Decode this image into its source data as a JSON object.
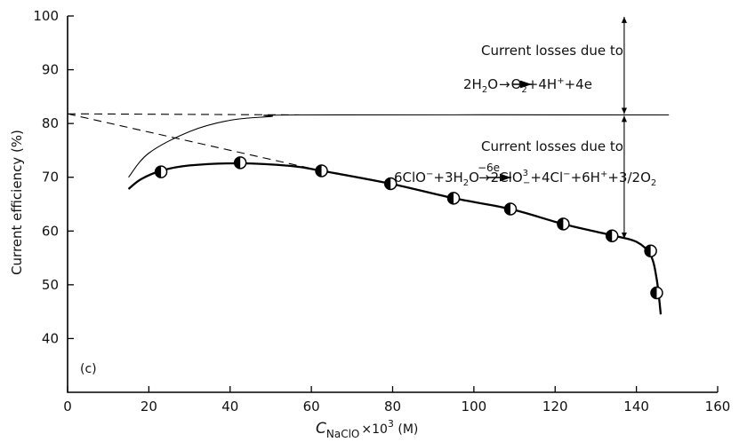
{
  "chart_data": {
    "type": "line",
    "title": "",
    "panel_label": "(c)",
    "xlabel": "C",
    "xlabel_sub": "NaClO",
    "xlabel_tail": "×10",
    "xlabel_sup": "3",
    "xlabel_unit": " (M)",
    "ylabel": "Current efficiency (%)",
    "xlim": [
      0,
      160
    ],
    "ylim": [
      30,
      100
    ],
    "xticks": [
      "0",
      "20",
      "40",
      "60",
      "80",
      "100",
      "120",
      "140",
      "160"
    ],
    "yticks": [
      "40",
      "50",
      "60",
      "70",
      "80",
      "90",
      "100"
    ],
    "grid": false,
    "series": [
      {
        "style": "thick-solid-with-markers",
        "x": [
          23,
          42.5,
          62.5,
          79.5,
          95,
          109,
          122,
          134,
          143.5,
          145
        ],
        "y": [
          71,
          72.7,
          71.2,
          68.8,
          66.1,
          64.1,
          61.3,
          59.1,
          56.3,
          48.5
        ]
      },
      {
        "style": "thin-solid",
        "x": [
          15,
          20,
          30,
          40,
          50,
          57,
          148
        ],
        "y": [
          70,
          74.5,
          78.5,
          80.6,
          81.3,
          81.6,
          81.6
        ]
      },
      {
        "style": "dashed",
        "x": [
          0,
          62.5
        ],
        "y": [
          81.8,
          71.2
        ]
      },
      {
        "style": "dashed",
        "x": [
          0,
          57
        ],
        "y": [
          81.8,
          81.6
        ]
      }
    ],
    "fit_curve": {
      "x": [
        15,
        18,
        23,
        30,
        42.5,
        55,
        62.5,
        79.5,
        95,
        109,
        122,
        134,
        140,
        143.5,
        145,
        146
      ],
      "y": [
        67.8,
        69.6,
        71.2,
        72.2,
        72.6,
        72.1,
        71.2,
        68.8,
        66.1,
        64.1,
        61.3,
        59.2,
        58.0,
        55.5,
        51,
        44.5
      ]
    },
    "annotations": [
      {
        "line1": "Current losses due to",
        "line2_parts": [
          "2H",
          "2",
          "O",
          "→",
          "O",
          "2",
          "+4H",
          "+",
          "+4e"
        ]
      },
      {
        "line1": "Current losses due to",
        "line2_parts": [
          "6ClO",
          "−",
          "+3H",
          "2",
          "O",
          "−6e",
          "→",
          "2ClO",
          "3",
          "−",
          "+4Cl",
          "−",
          "+6H",
          "+",
          "+3/2O",
          "2"
        ]
      }
    ],
    "arrow_x": 137,
    "arrow_levels": [
      100,
      81.6,
      58.6
    ]
  }
}
